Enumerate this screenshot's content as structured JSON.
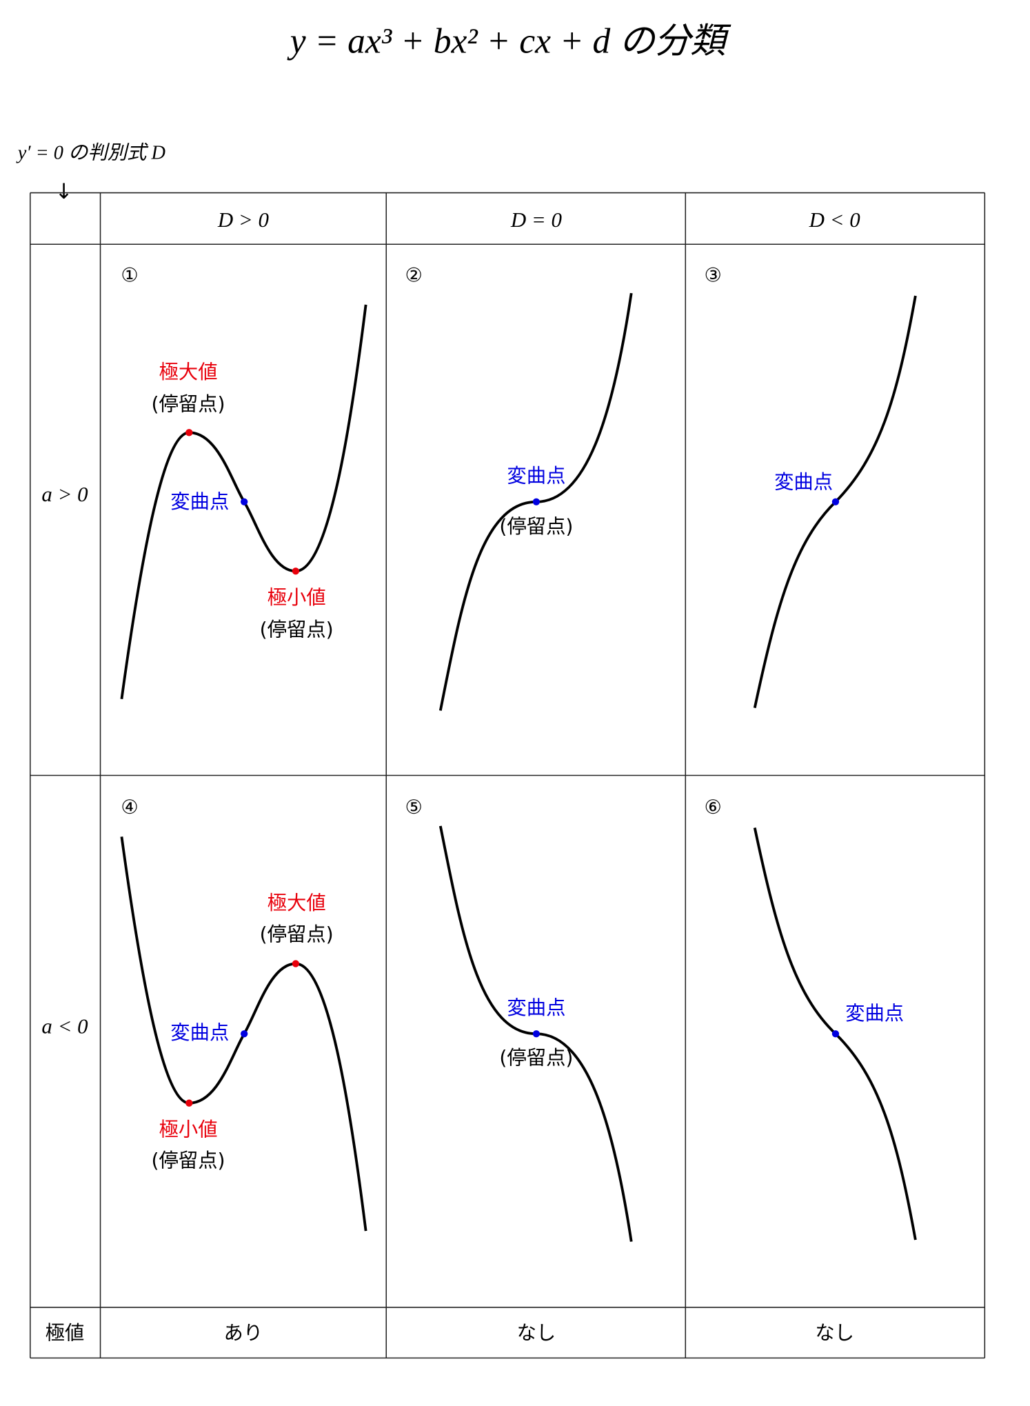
{
  "title": "y = ax³ + bx² + cx + d の分類",
  "discriminant_label": "y′ = 0 の判別式 D",
  "table": {
    "header": [
      "D > 0",
      "D = 0",
      "D < 0"
    ],
    "rows": [
      {
        "label": "a > 0",
        "cells": [
          {
            "number": "①",
            "labels": [
              "極大値",
              "(停留点)",
              "変曲点",
              "極小値",
              "(停留点)"
            ]
          },
          {
            "number": "②",
            "labels": [
              "変曲点",
              "(停留点)"
            ]
          },
          {
            "number": "③",
            "labels": [
              "変曲点"
            ]
          }
        ]
      },
      {
        "label": "a < 0",
        "cells": [
          {
            "number": "④",
            "labels": [
              "極大値",
              "(停留点)",
              "変曲点",
              "極小値",
              "(停留点)"
            ]
          },
          {
            "number": "⑤",
            "labels": [
              "変曲点",
              "(停留点)"
            ]
          },
          {
            "number": "⑥",
            "labels": [
              "変曲点"
            ]
          }
        ]
      }
    ],
    "footer": {
      "label": "極値",
      "values": [
        "あり",
        "なし",
        "なし"
      ]
    }
  }
}
